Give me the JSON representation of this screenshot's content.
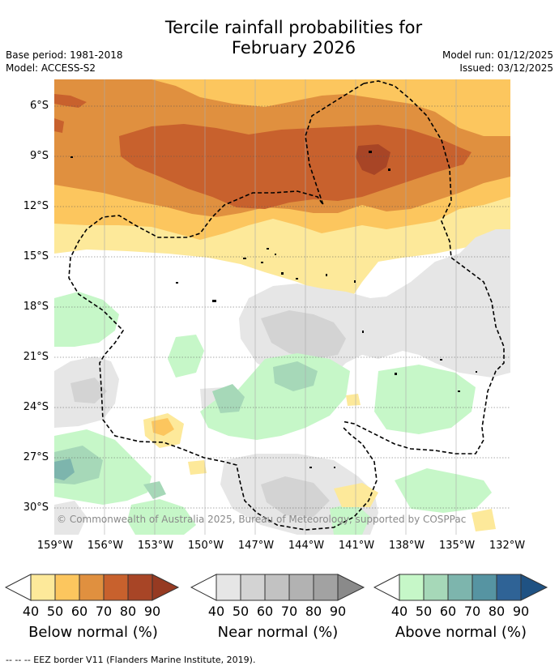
{
  "title": {
    "line1": "Tercile rainfall probabilities for",
    "line2": "February 2026"
  },
  "meta": {
    "base_period": "Base period: 1981-2018",
    "model": "Model: ACCESS-S2",
    "model_run": "Model run: 01/12/2025",
    "issued": "Issued: 03/12/2025"
  },
  "map": {
    "lat_labels": [
      "6°S",
      "9°S",
      "12°S",
      "15°S",
      "18°S",
      "21°S",
      "24°S",
      "27°S",
      "30°S"
    ],
    "lon_labels": [
      "159°W",
      "156°W",
      "153°W",
      "150°W",
      "147°W",
      "144°W",
      "141°W",
      "138°W",
      "135°W",
      "132°W"
    ],
    "copyright": "© Commonwealth of Australia 2025, Bureau of Meteorology, supported by COSPPac"
  },
  "legend": {
    "below": {
      "title": "Below normal (%)",
      "ticks": [
        "40",
        "50",
        "60",
        "70",
        "80",
        "90"
      ],
      "colors": [
        "#fde99a",
        "#fcc65e",
        "#e0903f",
        "#c8612d",
        "#a84526",
        "#963a22"
      ]
    },
    "near": {
      "title": "Near normal (%)",
      "ticks": [
        "40",
        "50",
        "60",
        "70",
        "80",
        "90"
      ],
      "colors": [
        "#e6e6e6",
        "#d3d3d3",
        "#c2c2c2",
        "#b2b2b2",
        "#a2a2a2",
        "#8a8a8a"
      ]
    },
    "above": {
      "title": "Above normal (%)",
      "ticks": [
        "40",
        "50",
        "60",
        "70",
        "80",
        "90"
      ],
      "colors": [
        "#c6f7c8",
        "#a6d8b8",
        "#7db5ad",
        "#5694a2",
        "#2f6396",
        "#1f5283"
      ]
    }
  },
  "footnote": "--  --  -- EEZ border V11 (Flanders Marine Institute, 2019)."
}
